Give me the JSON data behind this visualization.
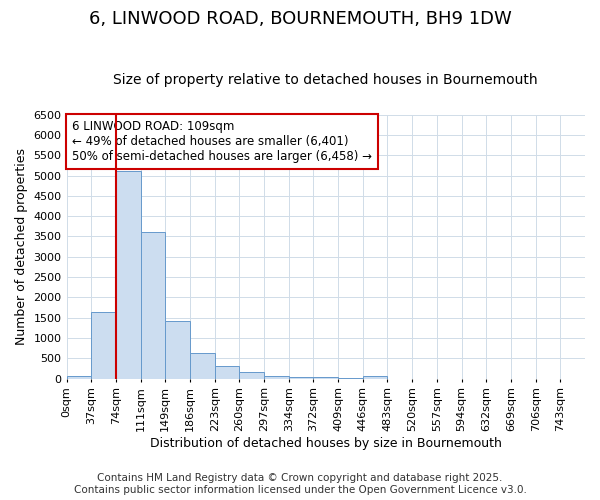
{
  "title": "6, LINWOOD ROAD, BOURNEMOUTH, BH9 1DW",
  "subtitle": "Size of property relative to detached houses in Bournemouth",
  "xlabel": "Distribution of detached houses by size in Bournemouth",
  "ylabel": "Number of detached properties",
  "bin_labels": [
    "0sqm",
    "37sqm",
    "74sqm",
    "111sqm",
    "149sqm",
    "186sqm",
    "223sqm",
    "260sqm",
    "297sqm",
    "334sqm",
    "372sqm",
    "409sqm",
    "446sqm",
    "483sqm",
    "520sqm",
    "557sqm",
    "594sqm",
    "632sqm",
    "669sqm",
    "706sqm",
    "743sqm"
  ],
  "bar_values": [
    75,
    1650,
    5100,
    3600,
    1420,
    620,
    310,
    155,
    75,
    50,
    30,
    20,
    55,
    0,
    0,
    0,
    0,
    0,
    0,
    0,
    0
  ],
  "bar_color": "#ccddf0",
  "bar_edge_color": "#6699cc",
  "vline_x": 2.0,
  "vline_color": "#cc0000",
  "annotation_text": "6 LINWOOD ROAD: 109sqm\n← 49% of detached houses are smaller (6,401)\n50% of semi-detached houses are larger (6,458) →",
  "annotation_box_color": "#ffffff",
  "annotation_box_edge": "#cc0000",
  "ylim": [
    0,
    6500
  ],
  "yticks": [
    0,
    500,
    1000,
    1500,
    2000,
    2500,
    3000,
    3500,
    4000,
    4500,
    5000,
    5500,
    6000,
    6500
  ],
  "footnote": "Contains HM Land Registry data © Crown copyright and database right 2025.\nContains public sector information licensed under the Open Government Licence v3.0.",
  "bg_color": "#ffffff",
  "plot_bg_color": "#ffffff",
  "grid_color": "#d0dce8",
  "title_fontsize": 13,
  "subtitle_fontsize": 10,
  "label_fontsize": 9,
  "tick_fontsize": 8,
  "footnote_fontsize": 7.5
}
